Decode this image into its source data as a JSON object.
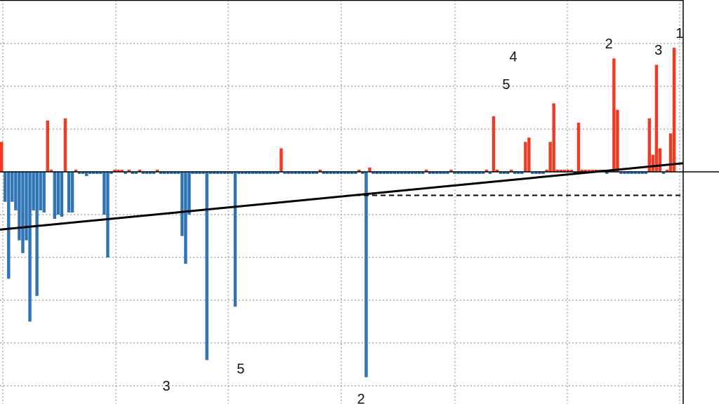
{
  "chart_data": {
    "type": "bar",
    "xlim": [
      0,
      193
    ],
    "ylim": [
      -5.3,
      4.0
    ],
    "grid": true,
    "zero_line": true,
    "values": [
      0.7,
      -0.7,
      -2.5,
      -0.7,
      -0.9,
      -1.6,
      -1.9,
      -1.6,
      -3.5,
      -0.9,
      -2.9,
      -0.9,
      -0.95,
      1.2,
      0.05,
      -1.1,
      -1.0,
      -1.05,
      1.25,
      -0.95,
      -0.95,
      0.05,
      -0.05,
      -0.05,
      -0.1,
      -0.05,
      -0.05,
      -0.05,
      -0.05,
      -1.0,
      -2.0,
      -0.05,
      0.05,
      0.05,
      0.05,
      -0.05,
      0.05,
      -0.05,
      -0.05,
      0.05,
      -0.05,
      -0.05,
      -0.05,
      -0.05,
      0.05,
      -0.05,
      -0.05,
      -0.05,
      -0.05,
      -0.05,
      -0.05,
      -1.5,
      -2.15,
      -1.0,
      -0.05,
      -0.05,
      -0.05,
      -0.05,
      -4.4,
      -0.05,
      -0.05,
      -0.05,
      -0.05,
      -0.05,
      -0.05,
      -0.05,
      -3.15,
      -0.05,
      -0.05,
      -0.05,
      -0.05,
      -0.05,
      -0.05,
      -0.05,
      -0.05,
      -0.05,
      -0.05,
      -0.05,
      -0.05,
      0.55,
      -0.05,
      -0.05,
      -0.05,
      -0.05,
      -0.05,
      -0.05,
      -0.05,
      -0.05,
      -0.05,
      -0.05,
      0.05,
      -0.05,
      -0.05,
      -0.05,
      -0.05,
      -0.05,
      -0.05,
      -0.05,
      -0.05,
      -0.05,
      -0.05,
      0.05,
      -0.05,
      -4.8,
      0.1,
      -0.05,
      -0.05,
      -0.05,
      -0.05,
      -0.05,
      -0.05,
      -0.05,
      -0.05,
      -0.05,
      -0.05,
      -0.05,
      -0.05,
      -0.05,
      -0.05,
      -0.05,
      0.05,
      -0.05,
      -0.05,
      -0.05,
      -0.05,
      -0.05,
      -0.05,
      0.05,
      -0.05,
      -0.05,
      -0.05,
      -0.05,
      -0.05,
      -0.05,
      -0.05,
      -0.05,
      -0.05,
      0.05,
      -0.05,
      1.3,
      0.05,
      -0.05,
      -0.05,
      -0.05,
      0.05,
      -0.05,
      -0.05,
      -0.05,
      0.7,
      0.8,
      -0.05,
      -0.05,
      -0.05,
      -0.05,
      0.05,
      0.7,
      1.6,
      0.05,
      0.05,
      0.05,
      0.05,
      0.05,
      -0.05,
      1.15,
      0.05,
      0.05,
      0.05,
      0.05,
      0.05,
      0.05,
      0.05,
      -0.05,
      0.05,
      2.65,
      1.45,
      -0.05,
      -0.05,
      -0.05,
      -0.05,
      -0.05,
      -0.05,
      -0.05,
      -0.05,
      1.25,
      0.4,
      2.5,
      0.55,
      -0.05,
      0.05,
      0.9,
      2.9
    ],
    "trend_line": {
      "x": [
        0,
        193
      ],
      "y": [
        -1.35,
        0.2
      ]
    },
    "reference_line": {
      "y": -0.55,
      "style": "dashed",
      "x": [
        98,
        193
      ]
    },
    "annotations": [
      {
        "text": "3",
        "x": 47,
        "y": -5.0
      },
      {
        "text": "5",
        "x": 68,
        "y": -4.6
      },
      {
        "text": "2",
        "x": 102,
        "y": -5.3
      },
      {
        "text": "4",
        "x": 145,
        "y": 2.7
      },
      {
        "text": "5",
        "x": 143,
        "y": 2.05
      },
      {
        "text": "2",
        "x": 172,
        "y": 3.0
      },
      {
        "text": "3",
        "x": 186,
        "y": 2.85
      },
      {
        "text": "1",
        "x": 192,
        "y": 3.25
      }
    ],
    "colors": {
      "positive": "#ee3b24",
      "negative": "#2f74b5",
      "trend": "#000000",
      "grid": "#9a9a9a",
      "axis": "#000000"
    }
  }
}
